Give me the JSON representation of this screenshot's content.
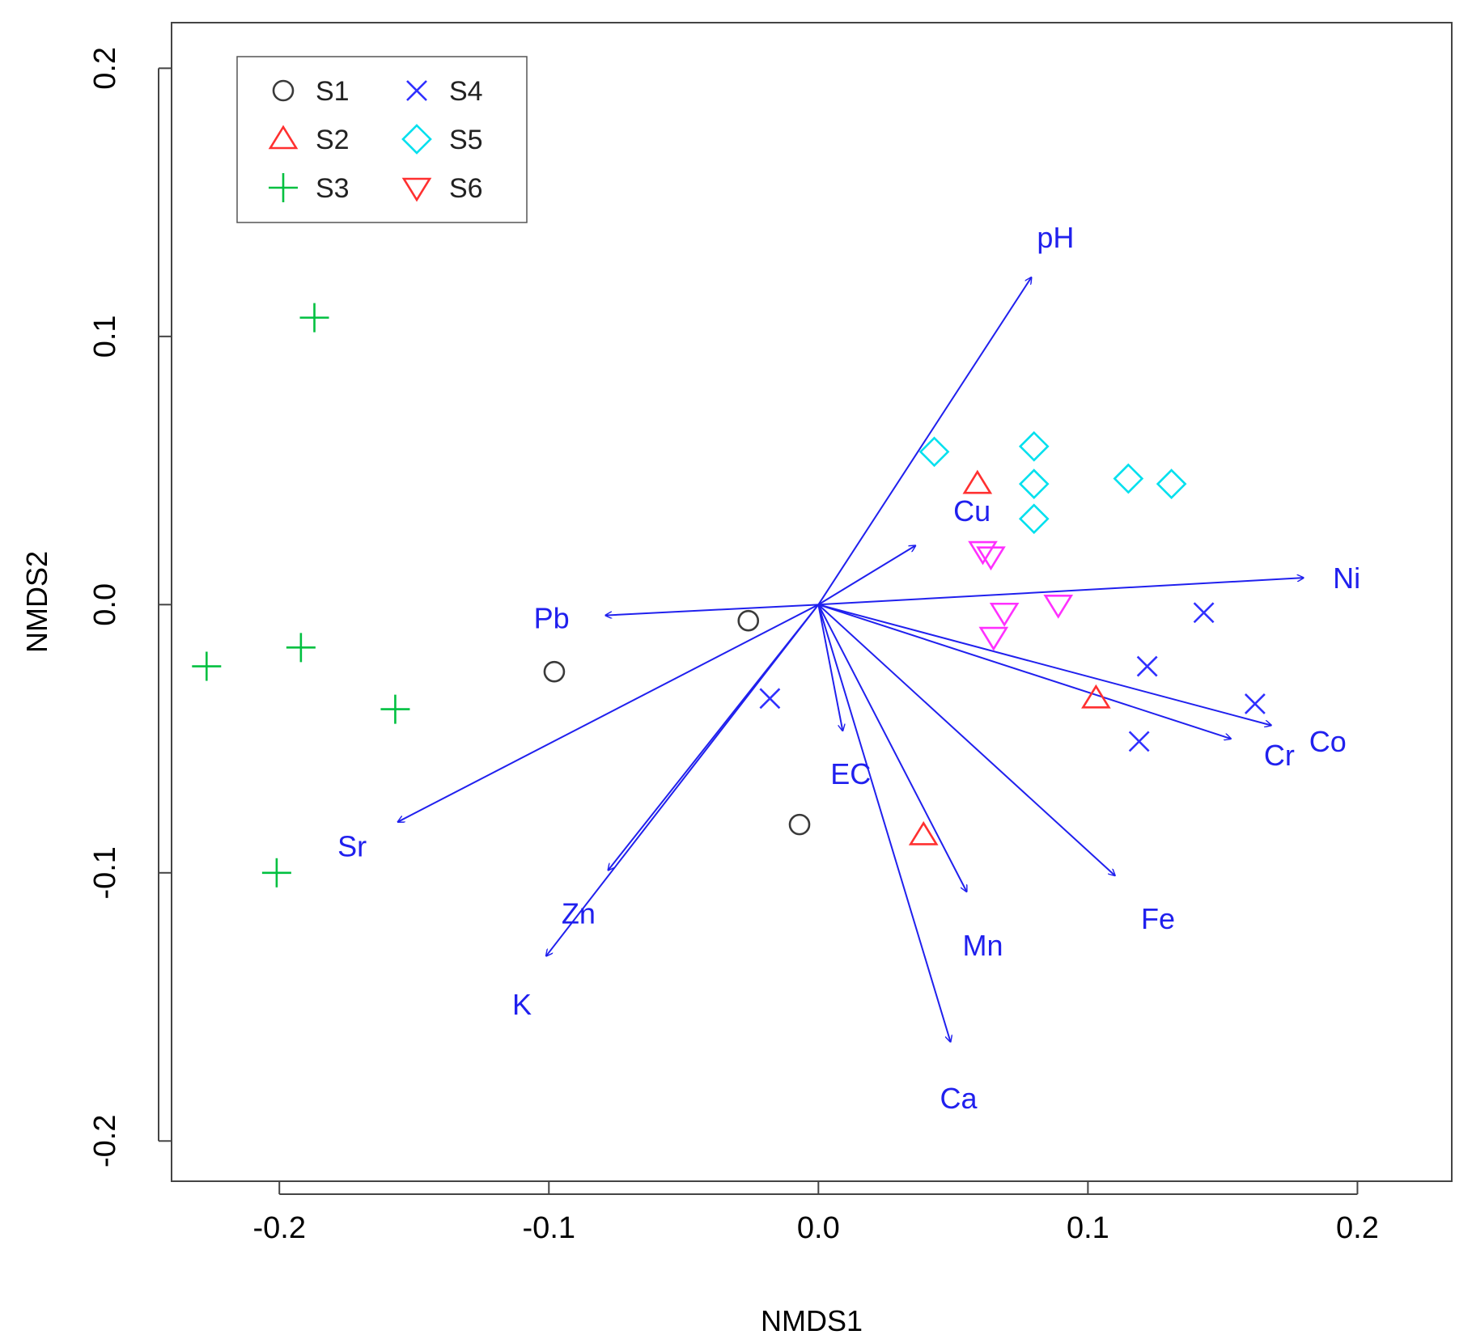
{
  "chart_data": {
    "type": "scatter",
    "title": "",
    "xlabel": "NMDS1",
    "ylabel": "NMDS2",
    "xlim": [
      -0.24,
      0.235
    ],
    "ylim": [
      -0.215,
      0.217
    ],
    "x_ticks": [
      -0.2,
      -0.1,
      0.0,
      0.1,
      0.2
    ],
    "x_tick_labels": [
      "-0.2",
      "-0.1",
      "0.0",
      "0.1",
      "0.2"
    ],
    "y_ticks": [
      -0.2,
      -0.1,
      0.0,
      0.1,
      0.2
    ],
    "y_tick_labels": [
      "-0.2",
      "-0.1",
      "0.0",
      "0.1",
      "0.2"
    ],
    "grid": false,
    "legend_position": "top-left",
    "series": [
      {
        "name": "S1",
        "label": "S1",
        "marker": "circle",
        "color": "#3a3a3a",
        "points": [
          [
            -0.026,
            -0.006
          ],
          [
            -0.098,
            -0.025
          ],
          [
            -0.007,
            -0.082
          ]
        ]
      },
      {
        "name": "S2",
        "label": "S2",
        "marker": "triangle-up",
        "color": "#ff3030",
        "points": [
          [
            0.059,
            0.045
          ],
          [
            0.103,
            -0.035
          ],
          [
            0.039,
            -0.086
          ]
        ]
      },
      {
        "name": "S3",
        "label": "S3",
        "marker": "plus",
        "color": "#00c040",
        "points": [
          [
            -0.187,
            0.107
          ],
          [
            -0.192,
            -0.016
          ],
          [
            -0.227,
            -0.023
          ],
          [
            -0.157,
            -0.039
          ],
          [
            -0.201,
            -0.1
          ]
        ]
      },
      {
        "name": "S4",
        "label": "S4",
        "marker": "cross",
        "color": "#3030ff",
        "points": [
          [
            0.143,
            -0.003
          ],
          [
            0.122,
            -0.023
          ],
          [
            0.162,
            -0.037
          ],
          [
            0.119,
            -0.051
          ],
          [
            -0.018,
            -0.035
          ]
        ]
      },
      {
        "name": "S5",
        "label": "S5",
        "marker": "diamond",
        "color": "#00e0ee",
        "points": [
          [
            0.043,
            0.057
          ],
          [
            0.08,
            0.059
          ],
          [
            0.08,
            0.045
          ],
          [
            0.08,
            0.032
          ],
          [
            0.115,
            0.047
          ],
          [
            0.131,
            0.045
          ]
        ]
      },
      {
        "name": "S6",
        "label": "S6",
        "marker": "triangle-down",
        "legend_color": "#ff3030",
        "color": "#ff30ff",
        "points": [
          [
            0.061,
            0.02
          ],
          [
            0.064,
            0.018
          ],
          [
            0.069,
            -0.003
          ],
          [
            0.089,
            0.0
          ],
          [
            0.065,
            -0.012
          ]
        ]
      }
    ],
    "vectors": {
      "color": "#2020ee",
      "items": [
        {
          "name": "pH",
          "label": "pH",
          "end": [
            0.079,
            0.122
          ],
          "label_at": [
            0.088,
            0.136
          ]
        },
        {
          "name": "Cu",
          "label": "Cu",
          "end": [
            0.036,
            0.022
          ],
          "label_at": [
            0.057,
            0.034
          ]
        },
        {
          "name": "Ni",
          "label": "Ni",
          "end": [
            0.18,
            0.01
          ],
          "label_at": [
            0.196,
            0.009
          ]
        },
        {
          "name": "Pb",
          "label": "Pb",
          "end": [
            -0.079,
            -0.004
          ],
          "label_at": [
            -0.099,
            -0.006
          ]
        },
        {
          "name": "Co",
          "label": "Co",
          "end": [
            0.168,
            -0.045
          ],
          "label_at": [
            0.189,
            -0.052
          ]
        },
        {
          "name": "Cr",
          "label": "Cr",
          "end": [
            0.153,
            -0.05
          ],
          "label_at": [
            0.171,
            -0.057
          ]
        },
        {
          "name": "EC",
          "label": "EC",
          "end": [
            0.009,
            -0.047
          ],
          "label_at": [
            0.012,
            -0.064
          ]
        },
        {
          "name": "Fe",
          "label": "Fe",
          "end": [
            0.11,
            -0.101
          ],
          "label_at": [
            0.126,
            -0.118
          ]
        },
        {
          "name": "Mn",
          "label": "Mn",
          "end": [
            0.055,
            -0.107
          ],
          "label_at": [
            0.061,
            -0.128
          ]
        },
        {
          "name": "Ca",
          "label": "Ca",
          "end": [
            0.049,
            -0.163
          ],
          "label_at": [
            0.052,
            -0.185
          ]
        },
        {
          "name": "Sr",
          "label": "Sr",
          "end": [
            -0.156,
            -0.081
          ],
          "label_at": [
            -0.173,
            -0.091
          ]
        },
        {
          "name": "Zn",
          "label": "Zn",
          "end": [
            -0.078,
            -0.099
          ],
          "label_at": [
            -0.089,
            -0.116
          ]
        },
        {
          "name": "K",
          "label": "K",
          "end": [
            -0.101,
            -0.131
          ],
          "label_at": [
            -0.11,
            -0.15
          ]
        }
      ]
    }
  }
}
